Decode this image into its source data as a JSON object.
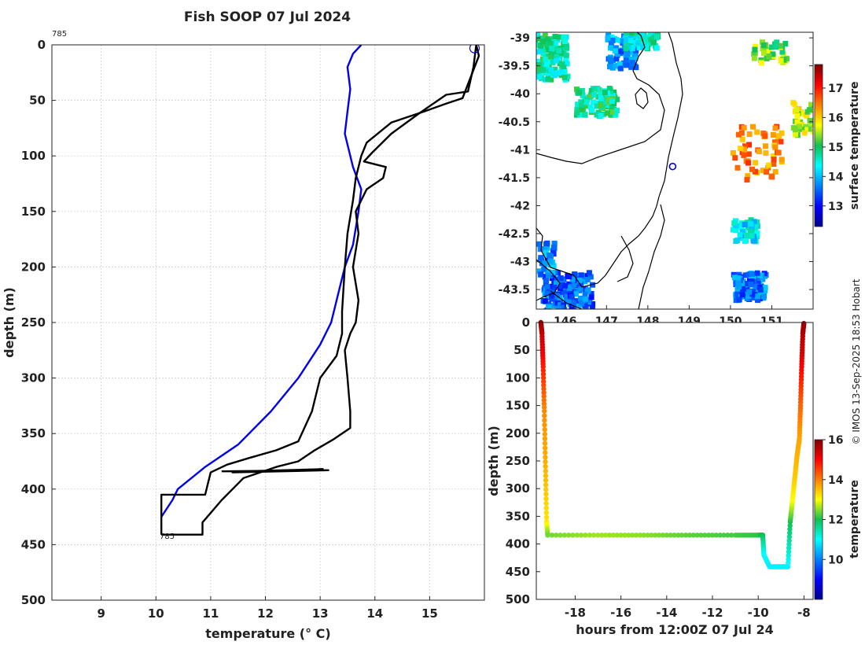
{
  "colors": {
    "profile_line": "#000000",
    "climatology_line": "#0000ee",
    "grid": "#c8c8c8",
    "marker": "#0000cc"
  },
  "credit": "© IMOS 13-Sep-2025 18:53 Hobart",
  "chart_data": [
    {
      "type": "line",
      "name": "profile",
      "title": "Fish SOOP 07 Jul 2024",
      "xlabel": "temperature (° C)",
      "ylabel": "depth (m)",
      "xlim": [
        8.1,
        16.0
      ],
      "ylim": [
        500,
        0
      ],
      "xticks": [
        "9",
        "10",
        "11",
        "12",
        "13",
        "14",
        "15"
      ],
      "yticks": [
        "0",
        "50",
        "100",
        "150",
        "200",
        "250",
        "300",
        "350",
        "400",
        "450",
        "500"
      ],
      "grid": true,
      "annotations": [
        {
          "label": "785",
          "x": 8.1,
          "y": -10
        },
        {
          "label": "785",
          "x": 10.0,
          "y": 441
        }
      ],
      "series": [
        {
          "name": "climatology",
          "x": [
            13.75,
            13.6,
            13.5,
            13.55,
            13.5,
            13.45,
            13.6,
            13.75,
            13.7,
            13.6,
            13.45,
            13.2,
            13.0,
            12.6,
            12.1,
            11.5,
            10.9,
            10.4,
            10.3,
            10.1
          ],
          "y": [
            0,
            8,
            20,
            40,
            60,
            80,
            110,
            130,
            150,
            180,
            200,
            250,
            270,
            300,
            330,
            360,
            380,
            400,
            410,
            425
          ]
        },
        {
          "name": "downcast",
          "x": [
            15.85,
            15.8,
            15.7,
            15.3,
            14.8,
            14.3,
            13.95,
            13.8,
            14.2,
            14.15,
            13.85,
            13.65,
            13.7,
            13.6,
            13.7,
            13.65,
            13.55,
            13.45,
            13.5,
            13.55,
            13.55,
            13.25,
            12.9,
            12.6,
            12.2,
            11.6,
            11.2,
            10.85,
            10.85,
            10.1
          ],
          "y": [
            0,
            20,
            42,
            45,
            62,
            80,
            97,
            105,
            110,
            120,
            130,
            150,
            170,
            200,
            230,
            250,
            260,
            275,
            300,
            330,
            345,
            355,
            365,
            375,
            380,
            390,
            410,
            430,
            441,
            441
          ]
        },
        {
          "name": "upcast",
          "x": [
            10.1,
            10.1,
            10.9,
            11.0,
            11.3,
            11.7,
            12.2,
            12.6,
            12.85,
            13.0,
            13.3,
            13.4,
            13.4,
            13.45,
            13.5,
            13.6,
            13.65,
            13.75,
            13.85,
            14.3,
            14.9,
            15.3,
            15.6,
            15.9,
            15.85
          ],
          "y": [
            441,
            405,
            405,
            385,
            378,
            372,
            365,
            357,
            330,
            300,
            280,
            260,
            240,
            200,
            170,
            140,
            120,
            100,
            88,
            70,
            60,
            53,
            48,
            10,
            0
          ]
        },
        {
          "name": "spike",
          "x": [
            11.2,
            13.15,
            11.4,
            13.05,
            11.6,
            12.9,
            11.2
          ],
          "y": [
            384,
            383,
            385,
            382,
            384,
            383,
            384
          ]
        }
      ]
    },
    {
      "type": "heatmap",
      "name": "map",
      "title": "",
      "xlabel": "",
      "ylabel": "",
      "xticks": [
        "146",
        "147",
        "148",
        "149",
        "150",
        "151"
      ],
      "yticks": [
        "-39",
        "-39.5",
        "-40",
        "-40.5",
        "-41",
        "-41.5",
        "-42",
        "-42.5",
        "-43",
        "-43.5"
      ],
      "xlim": [
        145.3,
        152.0
      ],
      "ylim": [
        -43.85,
        -38.9
      ],
      "colorbar_label": "surface temperature",
      "colorbar_ticks": [
        "13",
        "14",
        "15",
        "16",
        "17"
      ],
      "colorbar_range": [
        12.3,
        17.8
      ],
      "marker": {
        "lon": 148.6,
        "lat": -41.3
      }
    },
    {
      "type": "scatter",
      "name": "timeseries",
      "xlabel": "hours from 12:00Z 07 Jul 24",
      "ylabel": "depth (m)",
      "xlim": [
        -19.7,
        -7.6
      ],
      "ylim": [
        500,
        0
      ],
      "xticks": [
        "-18",
        "-16",
        "-14",
        "-12",
        "-10",
        "-8"
      ],
      "yticks": [
        "0",
        "50",
        "100",
        "150",
        "200",
        "250",
        "300",
        "350",
        "400",
        "450",
        "500"
      ],
      "colorbar_label": "temperature",
      "colorbar_ticks": [
        "10",
        "12",
        "14",
        "16"
      ],
      "colorbar_range": [
        8.0,
        16.0
      ],
      "track": {
        "t": [
          -19.5,
          -19.45,
          -19.4,
          -19.35,
          -19.3,
          -19.25,
          -19.2,
          -17.0,
          -15.0,
          -13.0,
          -11.0,
          -10.0,
          -9.8,
          -9.75,
          -9.5,
          -9.0,
          -8.7,
          -8.6,
          -8.5,
          -8.4,
          -8.3,
          -8.2,
          -8.15,
          -8.1,
          -8.05,
          -8.0
        ],
        "depth": [
          0,
          20,
          80,
          160,
          260,
          360,
          384,
          384,
          384,
          384,
          384,
          384,
          384,
          420,
          441,
          441,
          441,
          360,
          320,
          280,
          240,
          210,
          150,
          80,
          20,
          0
        ],
        "temp": [
          15.8,
          15.5,
          14.8,
          13.9,
          13.6,
          13.2,
          12.4,
          12.6,
          12.5,
          12.3,
          12.2,
          12.1,
          12.0,
          11.0,
          10.9,
          10.9,
          10.9,
          12.0,
          13.0,
          13.4,
          13.6,
          13.7,
          14.2,
          15.0,
          15.6,
          15.8
        ]
      }
    }
  ]
}
